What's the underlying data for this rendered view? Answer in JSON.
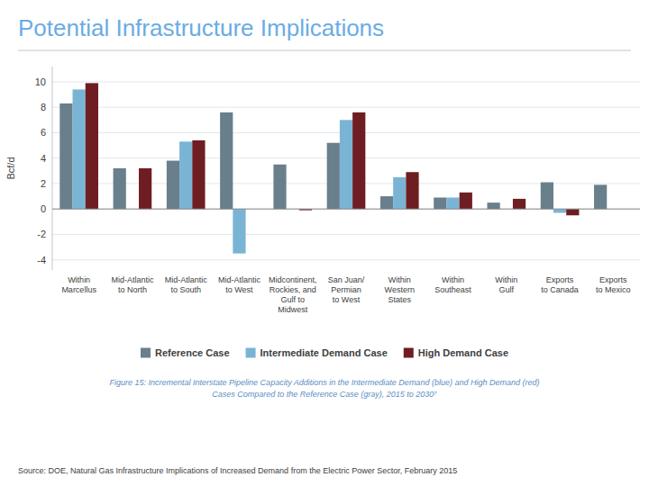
{
  "chart_data": {
    "type": "bar",
    "title": "Potential Infrastructure Implications",
    "y_label": "Bcf/d",
    "categories": [
      "Within\nMarcellus",
      "Mid-Atlantic\nto North",
      "Mid-Atlantic\nto South",
      "Mid-Atlantic\nto West",
      "Midcontinent,\nRockies, and\nGulf to\nMidwest",
      "San Juan/\nPermian\nto West",
      "Within\nWestern\nStates",
      "Within\nSoutheast",
      "Within\nGulf",
      "Exports\nto Canada",
      "Exports\nto Mexico"
    ],
    "series": [
      {
        "name": "Reference Case",
        "color": "#697f8c",
        "values": [
          8.3,
          3.2,
          3.8,
          7.6,
          3.5,
          5.2,
          1.0,
          0.9,
          0.5,
          2.1,
          1.9
        ]
      },
      {
        "name": "Intermediate Demand Case",
        "color": "#7ab4d4",
        "values": [
          9.4,
          0.0,
          5.3,
          -3.5,
          0.0,
          7.0,
          2.5,
          0.9,
          0.0,
          -0.3,
          0.0
        ]
      },
      {
        "name": "High Demand Case",
        "color": "#6e1e22",
        "values": [
          9.9,
          3.2,
          5.4,
          0.0,
          -0.1,
          7.6,
          2.9,
          1.3,
          0.8,
          -0.5,
          0.0
        ]
      }
    ],
    "ylim": [
      -4.8,
      11.2
    ],
    "yticks": [
      -4,
      -2,
      0,
      2,
      4,
      6,
      8,
      10
    ],
    "grid": true,
    "legend": "bottom",
    "annotations": [
      "Figure 15: Incremental Interstate Pipeline Capacity Additions in the Intermediate Demand (blue) and High Demand (red)",
      "Cases Compared to the Reference Case (gray), 2015 to 2030⁷",
      "Source: DOE, Natural Gas Infrastructure Implications of Increased Demand from the Electric Power Sector, February 2015"
    ]
  }
}
